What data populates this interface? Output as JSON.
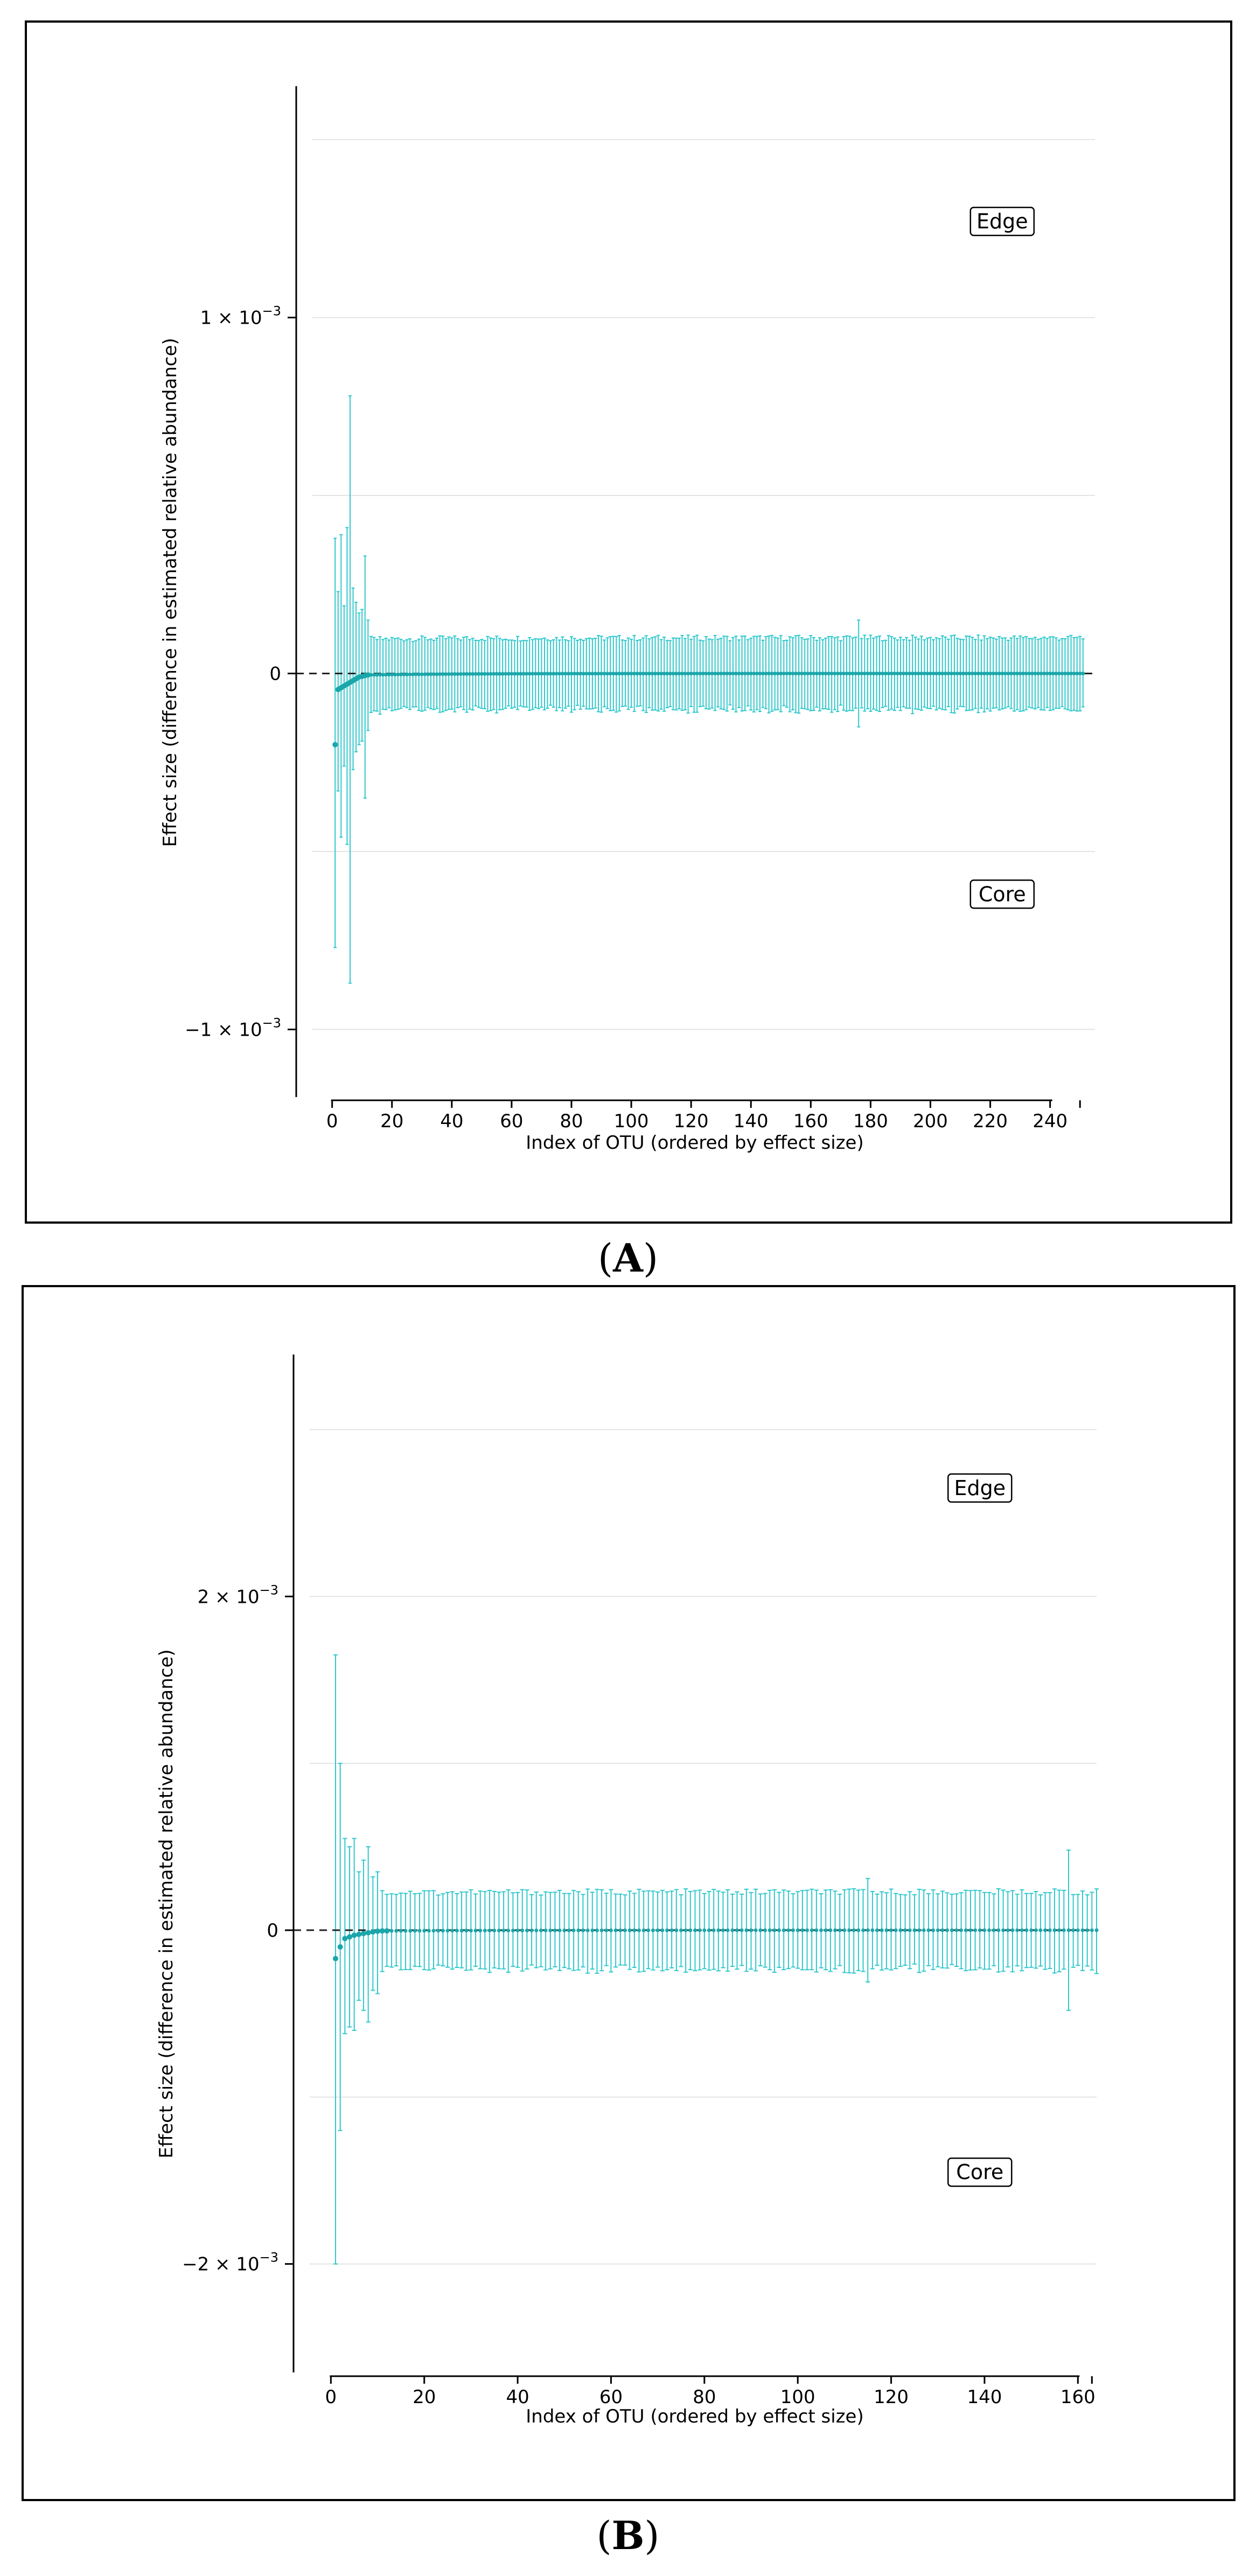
{
  "chart_data": [
    {
      "type": "scatter",
      "panel_label": "(A)",
      "panel_letter": "A",
      "xlabel": "Index of OTU (ordered by effect size)",
      "ylabel": "Effect size (difference in estimated relative abundance)",
      "xlim": [
        -12,
        255
      ],
      "ylim": [
        -0.00119,
        0.00165
      ],
      "x_ticks": [
        0,
        20,
        40,
        60,
        80,
        100,
        120,
        140,
        160,
        180,
        200,
        220,
        240
      ],
      "y_ticks": [
        {
          "value": 0.001,
          "mantissa": "1",
          "exponent": "−3",
          "text": ""
        },
        {
          "value": 0,
          "mantissa": "",
          "exponent": "",
          "text": "0"
        },
        {
          "value": -0.001,
          "mantissa": "−1",
          "exponent": "−3",
          "text": ""
        }
      ],
      "gridlines": [
        0.0015,
        0.001,
        0.0005,
        -0.0005,
        -0.001
      ],
      "annotations": [
        {
          "text": "Edge",
          "x": 224,
          "y": 0.00127
        },
        {
          "text": "Core",
          "x": 224,
          "y": -0.00062
        }
      ],
      "n_points": 251,
      "special_points": [
        {
          "x": 1,
          "y": -0.0002,
          "hi": 0.00038,
          "lo": -0.00077
        },
        {
          "x": 2,
          "y": -4.5e-05,
          "hi": 0.00023,
          "lo": -0.00033
        },
        {
          "x": 3,
          "y": -4e-05,
          "hi": 0.00039,
          "lo": -0.00046
        },
        {
          "x": 4,
          "y": -3.5e-05,
          "hi": 0.00019,
          "lo": -0.00026
        },
        {
          "x": 5,
          "y": -3e-05,
          "hi": 0.00041,
          "lo": -0.00048
        },
        {
          "x": 6,
          "y": -2.5e-05,
          "hi": 0.00078,
          "lo": -0.00087
        },
        {
          "x": 7,
          "y": -2e-05,
          "hi": 0.00024,
          "lo": -0.00027
        },
        {
          "x": 8,
          "y": -1.5e-05,
          "hi": 0.0002,
          "lo": -0.00022
        },
        {
          "x": 9,
          "y": -1e-05,
          "hi": 0.00017,
          "lo": -0.0002
        },
        {
          "x": 10,
          "y": -8e-06,
          "hi": 0.00018,
          "lo": -0.00019
        },
        {
          "x": 11,
          "y": -6e-06,
          "hi": 0.00033,
          "lo": -0.00035
        },
        {
          "x": 12,
          "y": -4e-06,
          "hi": 0.00015,
          "lo": -0.00016
        },
        {
          "x": 176,
          "y": 0.0,
          "hi": 0.00015,
          "lo": -0.00015
        }
      ],
      "typical_error": 0.0001,
      "color": "#30c8cc",
      "point_color": "#1aa6aa"
    },
    {
      "type": "scatter",
      "panel_label": "(B)",
      "panel_letter": "B",
      "xlabel": "Index of OTU (ordered by effect size)",
      "ylabel": "Effect size (difference in estimated relative abundance)",
      "xlim": [
        -8,
        164
      ],
      "ylim": [
        -0.00265,
        0.00345
      ],
      "x_ticks": [
        0,
        20,
        40,
        60,
        80,
        100,
        120,
        140,
        160
      ],
      "y_ticks": [
        {
          "value": 0.002,
          "mantissa": "2",
          "exponent": "−3",
          "text": ""
        },
        {
          "value": 0,
          "mantissa": "",
          "exponent": "",
          "text": "0"
        },
        {
          "value": -0.002,
          "mantissa": "−2",
          "exponent": "−3",
          "text": ""
        }
      ],
      "gridlines": [
        0.003,
        0.002,
        0.001,
        -0.001,
        -0.002
      ],
      "annotations": [
        {
          "text": "Edge",
          "x": 139,
          "y": 0.00265
        },
        {
          "text": "Core",
          "x": 139,
          "y": -0.00145
        }
      ],
      "n_points": 164,
      "special_points": [
        {
          "x": 1,
          "y": -0.00017,
          "hi": 0.00165,
          "lo": -0.002
        },
        {
          "x": 2,
          "y": -0.0001,
          "hi": 0.001,
          "lo": -0.0012
        },
        {
          "x": 3,
          "y": -5e-05,
          "hi": 0.00055,
          "lo": -0.00062
        },
        {
          "x": 4,
          "y": -4e-05,
          "hi": 0.0005,
          "lo": -0.00058
        },
        {
          "x": 5,
          "y": -3e-05,
          "hi": 0.00055,
          "lo": -0.0006
        },
        {
          "x": 6,
          "y": -2.5e-05,
          "hi": 0.00035,
          "lo": -0.00042
        },
        {
          "x": 7,
          "y": -2e-05,
          "hi": 0.00042,
          "lo": -0.00048
        },
        {
          "x": 8,
          "y": -1.5e-05,
          "hi": 0.0005,
          "lo": -0.00055
        },
        {
          "x": 9,
          "y": -1e-05,
          "hi": 0.00032,
          "lo": -0.00036
        },
        {
          "x": 10,
          "y": -6e-06,
          "hi": 0.00035,
          "lo": -0.00038
        },
        {
          "x": 115,
          "y": 0.0,
          "hi": 0.00031,
          "lo": -0.00031
        },
        {
          "x": 158,
          "y": 0.0,
          "hi": 0.00048,
          "lo": -0.00048
        }
      ],
      "typical_error": 0.00023,
      "color": "#30c8cc",
      "point_color": "#1aa6aa"
    }
  ]
}
